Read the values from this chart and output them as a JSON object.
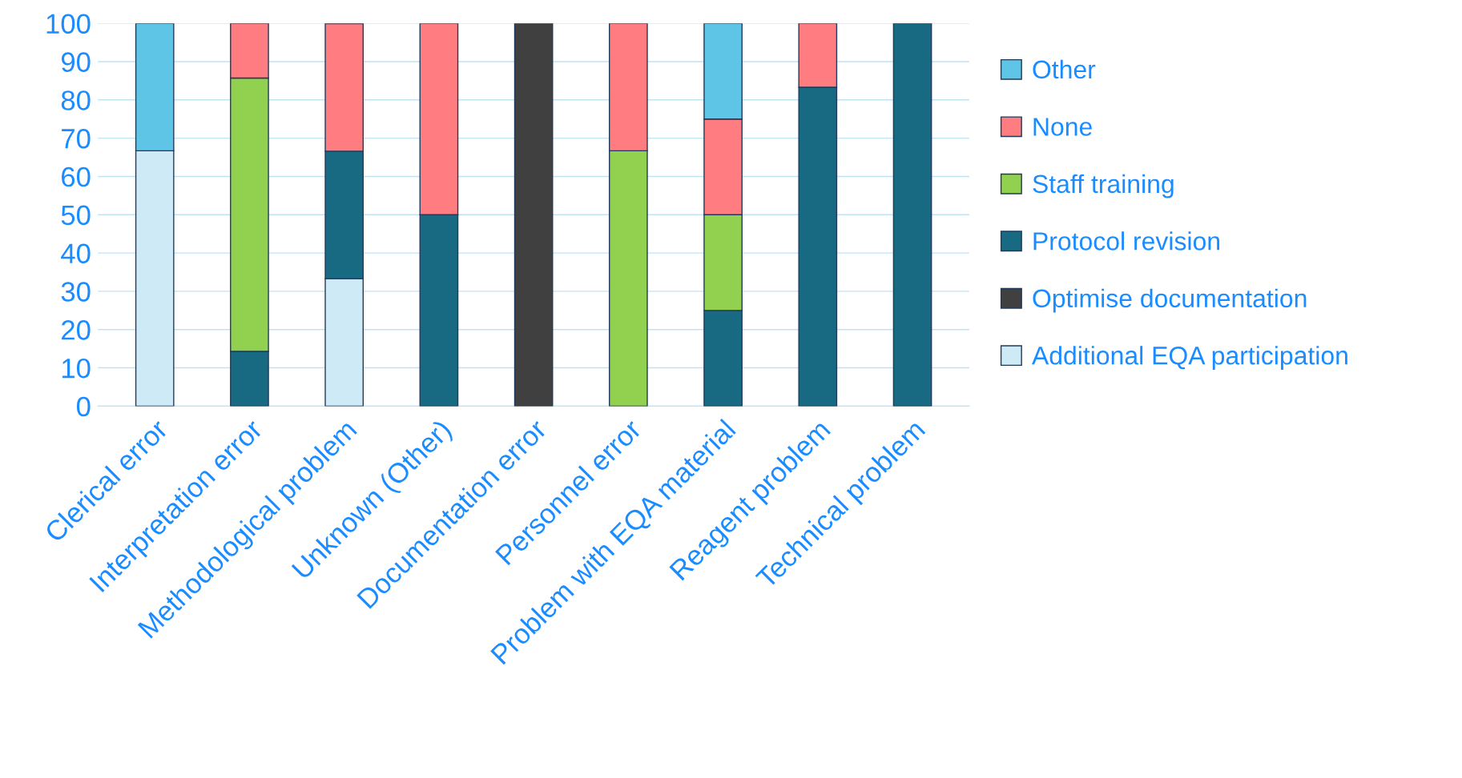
{
  "chart_data": {
    "type": "bar",
    "stacked": true,
    "categories": [
      "Clerical error",
      "Interpretation error",
      "Methodological problem",
      "Unknown (Other)",
      "Documentation error",
      "Personnel error",
      "Problem with EQA material",
      "Reagent problem",
      "Technical problem"
    ],
    "series": [
      {
        "name": "Additional EQA participation",
        "color": "#cdeaf6",
        "values": [
          66.7,
          0,
          33.3,
          0,
          0,
          0,
          0,
          0,
          0
        ]
      },
      {
        "name": "Optimise documentation",
        "color": "#404040",
        "values": [
          0,
          0,
          0,
          0,
          100,
          0,
          0,
          0,
          0
        ]
      },
      {
        "name": "Protocol revision",
        "color": "#186a82",
        "values": [
          0,
          14.3,
          33.3,
          50,
          0,
          0,
          25,
          83.3,
          100
        ]
      },
      {
        "name": "Staff training",
        "color": "#92d050",
        "values": [
          0,
          71.4,
          0,
          0,
          0,
          66.7,
          25,
          0,
          0
        ]
      },
      {
        "name": "None",
        "color": "#ff7c80",
        "values": [
          0,
          14.3,
          33.3,
          50,
          0,
          33.3,
          25,
          16.7,
          0
        ]
      },
      {
        "name": "Other",
        "color": "#5ec5e6",
        "values": [
          33.3,
          0,
          0,
          0,
          0,
          0,
          25,
          0,
          0
        ]
      }
    ],
    "ylim": [
      0,
      100
    ],
    "yticks": [
      0,
      10,
      20,
      30,
      40,
      50,
      60,
      70,
      80,
      90,
      100
    ],
    "grid": "y",
    "legend": "right"
  }
}
